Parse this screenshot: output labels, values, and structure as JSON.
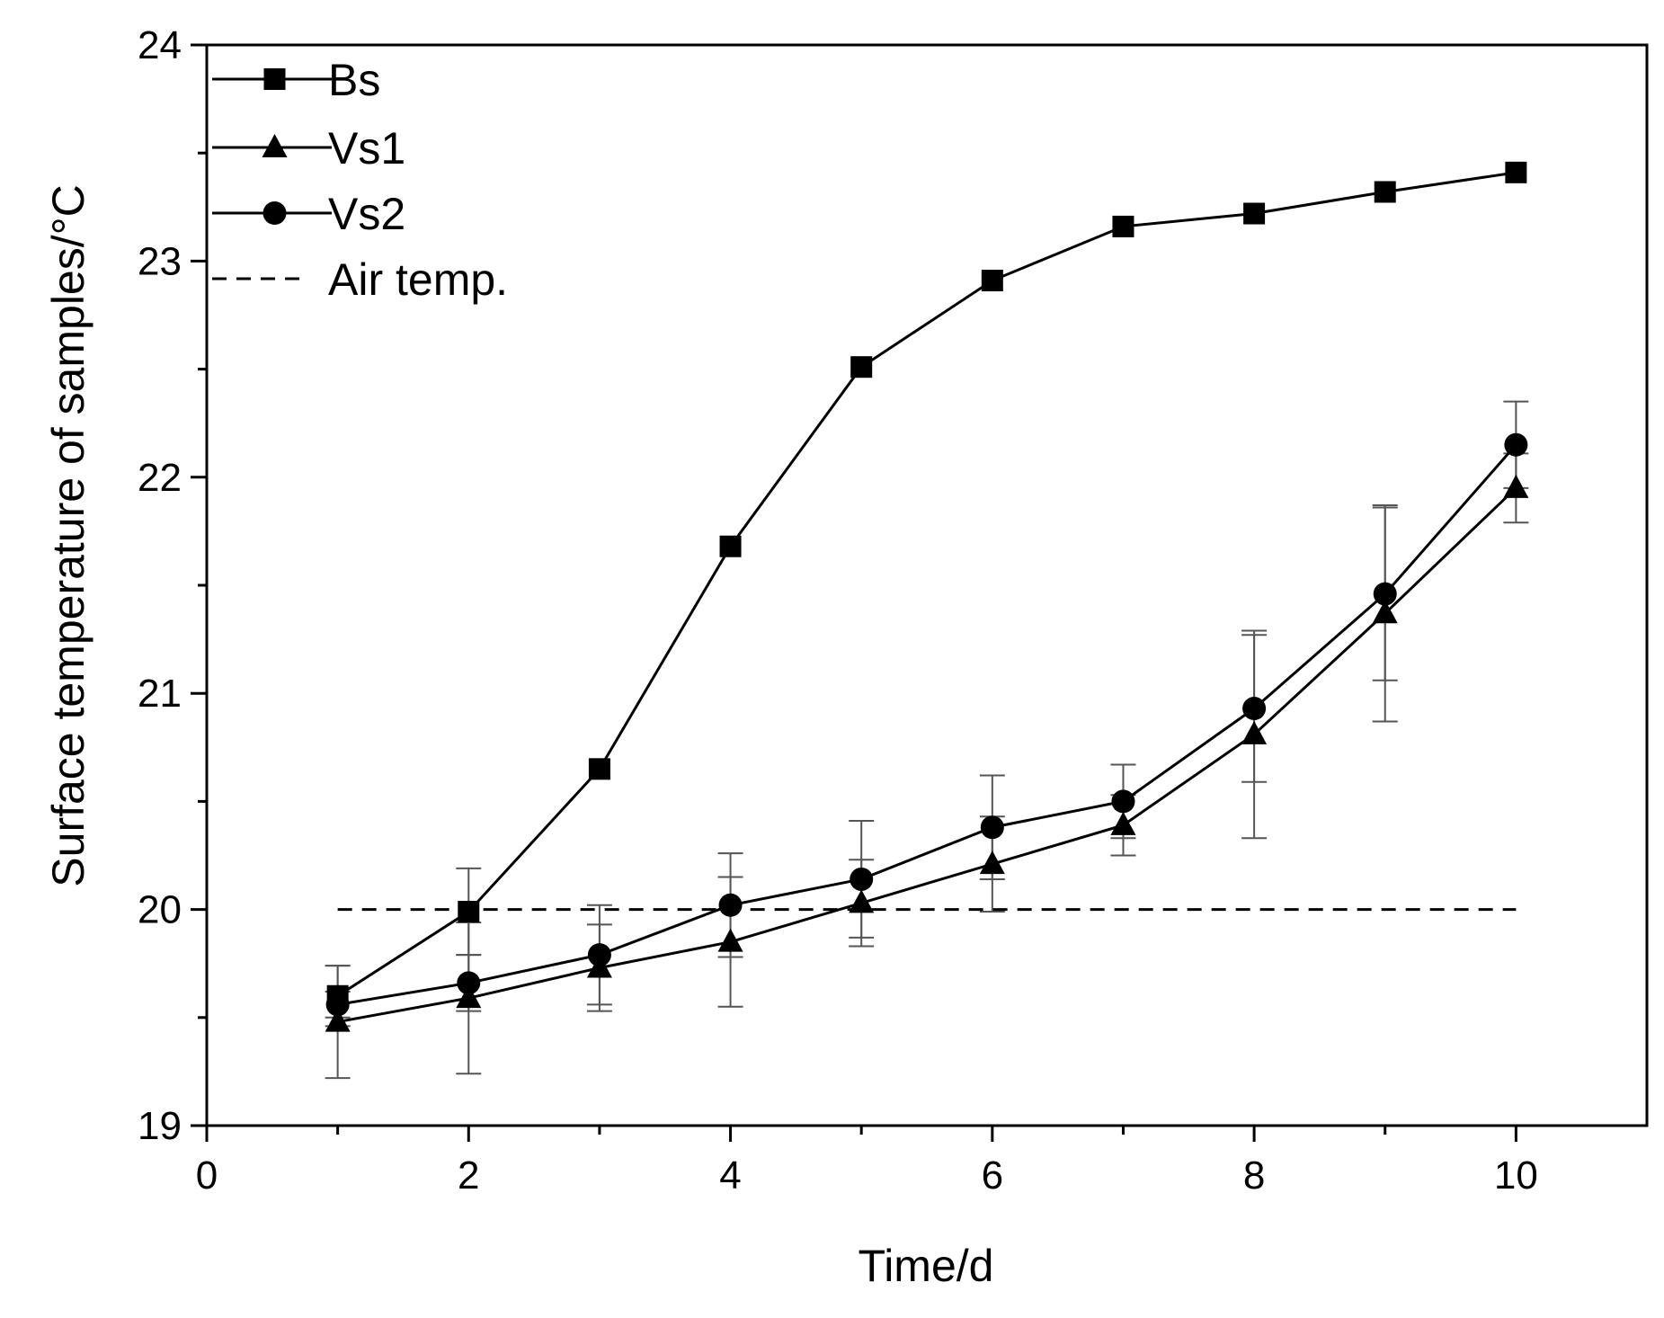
{
  "chart_data": {
    "type": "line",
    "title": "",
    "xlabel": "Time/d",
    "ylabel": "Surface temperature of samples/°C",
    "xlim": [
      0,
      11
    ],
    "ylim": [
      19,
      24
    ],
    "x_ticks": [
      0,
      2,
      4,
      6,
      8,
      10
    ],
    "x_tick_labels": [
      "0",
      "2",
      "4",
      "6",
      "8",
      "10"
    ],
    "y_ticks": [
      19,
      20,
      21,
      22,
      23,
      24
    ],
    "y_tick_labels": [
      "19",
      "20",
      "21",
      "22",
      "23",
      "24"
    ],
    "grid": false,
    "legend_position": "top-left",
    "x": [
      1,
      2,
      3,
      4,
      5,
      6,
      7,
      8,
      9,
      10
    ],
    "series": [
      {
        "name": "Bs",
        "marker": "square",
        "values": [
          19.6,
          19.99,
          20.65,
          21.68,
          22.51,
          22.91,
          23.16,
          23.22,
          23.32,
          23.41
        ],
        "errors": [
          0.14,
          0.2,
          0,
          0,
          0,
          0,
          0,
          0,
          0,
          0
        ]
      },
      {
        "name": "Vs1",
        "marker": "triangle",
        "values": [
          19.48,
          19.59,
          19.73,
          19.85,
          20.03,
          20.21,
          20.39,
          20.81,
          21.37,
          21.95
        ],
        "errors": [
          0.26,
          0.35,
          0.2,
          0.3,
          0.2,
          0.22,
          0.14,
          0.48,
          0.5,
          0.16
        ]
      },
      {
        "name": "Vs2",
        "marker": "circle",
        "values": [
          19.56,
          19.66,
          19.79,
          20.02,
          20.14,
          20.38,
          20.5,
          20.93,
          21.46,
          22.15
        ],
        "errors": [
          0.06,
          0.13,
          0.23,
          0.24,
          0.27,
          0.24,
          0.17,
          0.34,
          0.4,
          0.2
        ]
      },
      {
        "name": "Air temp.",
        "style": "dashed",
        "x": [
          1,
          10
        ],
        "values": [
          20,
          20
        ]
      }
    ]
  }
}
